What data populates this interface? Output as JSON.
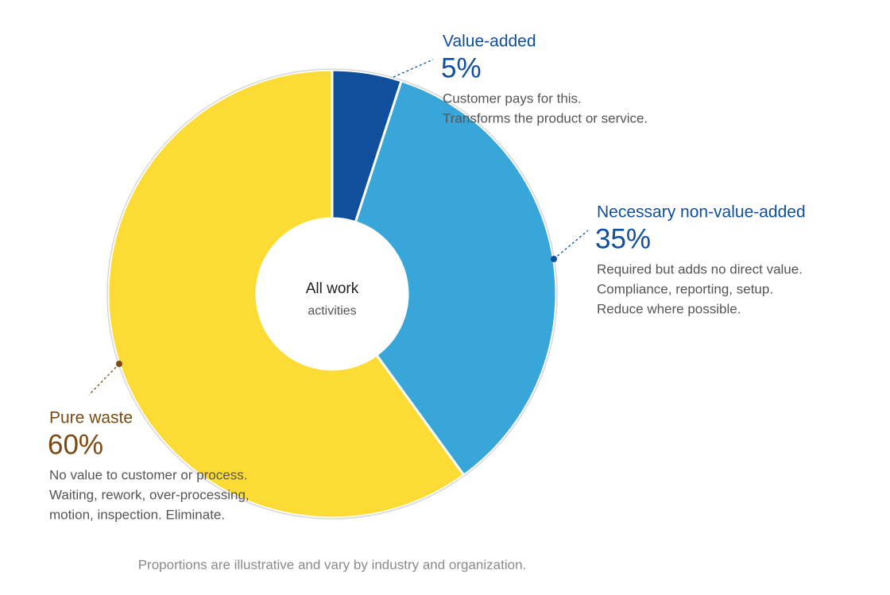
{
  "chart_data": {
    "type": "donut",
    "categories": [
      "Value-added",
      "Necessary non-value-added",
      "Pure waste"
    ],
    "values": [
      5,
      35,
      60
    ],
    "value_labels": [
      "5%",
      "35%",
      "60%"
    ],
    "colors": [
      "#0f4f9c",
      "#38a6d8",
      "#fddb35"
    ],
    "label_colors": [
      "#0f4f9c",
      "#0f4f9c",
      "#7a4a12"
    ],
    "descriptions": [
      [
        "Customer pays for this.",
        "Transforms the product or service."
      ],
      [
        "Required but adds no direct value.",
        "Compliance, reporting, setup.",
        "Reduce where possible."
      ],
      [
        "No value to customer or process.",
        "Waiting, rework, over-processing,",
        "motion, inspection. Eliminate."
      ]
    ],
    "center_title": "All work",
    "center_subtitle": "activities",
    "note": "Proportions are illustrative and vary by industry and organization."
  }
}
